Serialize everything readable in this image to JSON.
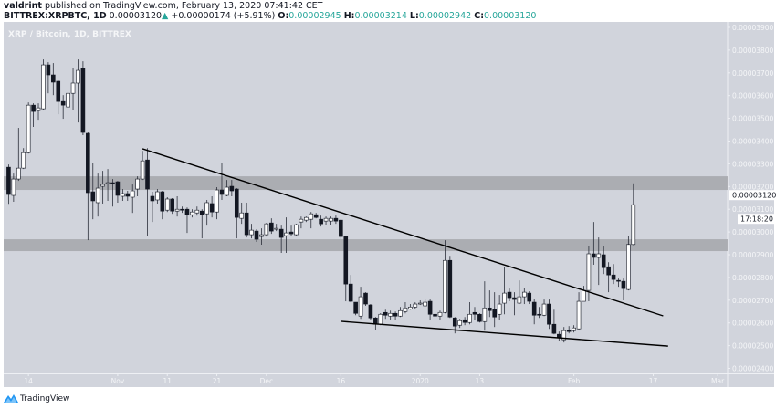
{
  "header": {
    "author": "valdrint",
    "published_text": "published on TradingView.com, February 13, 2020 07:41:42 CET",
    "symbol": "BITTREX:XRPBTC, 1D",
    "last_price": "0.00003120",
    "change": "+0.00000174 (+5.91%)",
    "o_label": "O:",
    "o_value": "0.00002945",
    "h_label": "H:",
    "h_value": "0.00003214",
    "l_label": "L:",
    "l_value": "0.00002942",
    "c_label": "C:",
    "c_value": "0.00003120"
  },
  "chart_title": "XRP / Bitcoin, 1D, BITTREX",
  "price_label": "0.00003120",
  "countdown": "17:18:20",
  "footer": {
    "brand": "TradingView"
  },
  "colors": {
    "background": "#d1d4dc",
    "up_candle": "#ffffff",
    "down_candle": "#131722",
    "zone": "#a5a6aa",
    "trendline": "#000000",
    "change_up": "#26a69a"
  },
  "chart_data": {
    "type": "candlestick",
    "title": "XRP / Bitcoin, 1D, BITTREX",
    "xlim": [
      "2019-10-09",
      "2020-03-03"
    ],
    "ylim": [
      2.378e-05,
      3.924e-05
    ],
    "grid": false,
    "y_ticks": [
      "0.00003900",
      "0.00003800",
      "0.00003700",
      "0.00003600",
      "0.00003500",
      "0.00003400",
      "0.00003300",
      "0.00003200",
      "0.00003100",
      "0.00003000",
      "0.00002900",
      "0.00002800",
      "0.00002700",
      "0.00002600",
      "0.00002500",
      "0.00002400"
    ],
    "x_ticks": [
      {
        "date": "2019-10-14",
        "label": "14"
      },
      {
        "date": "2019-11-01",
        "label": "Nov"
      },
      {
        "date": "2019-11-11",
        "label": "11"
      },
      {
        "date": "2019-11-21",
        "label": "21"
      },
      {
        "date": "2019-12-01",
        "label": "Dec"
      },
      {
        "date": "2019-12-16",
        "label": "16"
      },
      {
        "date": "2020-01-01",
        "label": "2020"
      },
      {
        "date": "2020-01-13",
        "label": "13"
      },
      {
        "date": "2020-02-01",
        "label": "Feb"
      },
      {
        "date": "2020-02-17",
        "label": "17"
      },
      {
        "date": "2020-03-01",
        "label": "Mar"
      }
    ],
    "zones": [
      {
        "from": 3.185e-05,
        "to": 3.245e-05
      },
      {
        "from": 2.916e-05,
        "to": 2.968e-05
      }
    ],
    "trendlines": [
      {
        "from": [
          "2019-11-06",
          3.366e-05
        ],
        "to": [
          "2020-02-19",
          2.631e-05
        ]
      },
      {
        "from": [
          "2019-12-16",
          2.607e-05
        ],
        "to": [
          "2020-02-20",
          2.498e-05
        ]
      }
    ],
    "candles_columns": [
      "date",
      "open",
      "high",
      "low",
      "close"
    ],
    "candles": [
      [
        "2019-10-10",
        3.285e-05,
        3.297e-05,
        3.124e-05,
        3.165e-05
      ],
      [
        "2019-10-11",
        3.161e-05,
        3.257e-05,
        3.133e-05,
        3.233e-05
      ],
      [
        "2019-10-12",
        3.233e-05,
        3.458e-05,
        3.225e-05,
        3.281e-05
      ],
      [
        "2019-10-13",
        3.281e-05,
        3.369e-05,
        3.277e-05,
        3.349e-05
      ],
      [
        "2019-10-14",
        3.349e-05,
        3.57e-05,
        3.345e-05,
        3.558e-05
      ],
      [
        "2019-10-15",
        3.558e-05,
        3.566e-05,
        3.462e-05,
        3.53e-05
      ],
      [
        "2019-10-16",
        3.534e-05,
        3.566e-05,
        3.494e-05,
        3.546e-05
      ],
      [
        "2019-10-17",
        3.542e-05,
        3.759e-05,
        3.538e-05,
        3.735e-05
      ],
      [
        "2019-10-18",
        3.735e-05,
        3.747e-05,
        3.61e-05,
        3.691e-05
      ],
      [
        "2019-10-19",
        3.691e-05,
        3.743e-05,
        3.602e-05,
        3.659e-05
      ],
      [
        "2019-10-20",
        3.663e-05,
        3.667e-05,
        3.518e-05,
        3.574e-05
      ],
      [
        "2019-10-21",
        3.574e-05,
        3.602e-05,
        3.498e-05,
        3.558e-05
      ],
      [
        "2019-10-22",
        3.55e-05,
        3.691e-05,
        3.538e-05,
        3.61e-05
      ],
      [
        "2019-10-23",
        3.61e-05,
        3.719e-05,
        3.538e-05,
        3.655e-05
      ],
      [
        "2019-10-24",
        3.655e-05,
        3.759e-05,
        3.482e-05,
        3.711e-05
      ],
      [
        "2019-10-25",
        3.719e-05,
        3.751e-05,
        3.426e-05,
        3.438e-05
      ],
      [
        "2019-10-26",
        3.434e-05,
        3.438e-05,
        2.964e-05,
        3.173e-05
      ],
      [
        "2019-10-27",
        3.177e-05,
        3.305e-05,
        3.056e-05,
        3.137e-05
      ],
      [
        "2019-10-28",
        3.129e-05,
        3.257e-05,
        3.068e-05,
        3.193e-05
      ],
      [
        "2019-10-29",
        3.201e-05,
        3.269e-05,
        3.125e-05,
        3.209e-05
      ],
      [
        "2019-10-30",
        3.213e-05,
        3.277e-05,
        3.137e-05,
        3.217e-05
      ],
      [
        "2019-10-31",
        3.217e-05,
        3.233e-05,
        3.112e-05,
        3.213e-05
      ],
      [
        "2019-11-01",
        3.221e-05,
        3.225e-05,
        3.129e-05,
        3.161e-05
      ],
      [
        "2019-11-02",
        3.157e-05,
        3.189e-05,
        3.137e-05,
        3.169e-05
      ],
      [
        "2019-11-03",
        3.169e-05,
        3.181e-05,
        3.137e-05,
        3.157e-05
      ],
      [
        "2019-11-04",
        3.153e-05,
        3.209e-05,
        3.084e-05,
        3.181e-05
      ],
      [
        "2019-11-05",
        3.189e-05,
        3.245e-05,
        3.157e-05,
        3.233e-05
      ],
      [
        "2019-11-06",
        3.233e-05,
        3.357e-05,
        3.229e-05,
        3.313e-05
      ],
      [
        "2019-11-07",
        3.317e-05,
        3.369e-05,
        2.984e-05,
        3.189e-05
      ],
      [
        "2019-11-08",
        3.157e-05,
        3.177e-05,
        3.044e-05,
        3.137e-05
      ],
      [
        "2019-11-09",
        3.141e-05,
        3.189e-05,
        3.125e-05,
        3.177e-05
      ],
      [
        "2019-11-10",
        3.177e-05,
        3.181e-05,
        3.056e-05,
        3.092e-05
      ],
      [
        "2019-11-11",
        3.096e-05,
        3.153e-05,
        3.088e-05,
        3.145e-05
      ],
      [
        "2019-11-12",
        3.145e-05,
        3.149e-05,
        3.08e-05,
        3.092e-05
      ],
      [
        "2019-11-13",
        3.092e-05,
        3.157e-05,
        3.068e-05,
        3.1e-05
      ],
      [
        "2019-11-14",
        3.1e-05,
        3.112e-05,
        3.084e-05,
        3.096e-05
      ],
      [
        "2019-11-15",
        3.1e-05,
        3.108e-05,
        2.996e-05,
        3.076e-05
      ],
      [
        "2019-11-16",
        3.076e-05,
        3.1e-05,
        3.064e-05,
        3.088e-05
      ],
      [
        "2019-11-17",
        3.084e-05,
        3.112e-05,
        3.072e-05,
        3.096e-05
      ],
      [
        "2019-11-18",
        3.092e-05,
        3.1e-05,
        2.972e-05,
        3.076e-05
      ],
      [
        "2019-11-19",
        3.08e-05,
        3.141e-05,
        3.028e-05,
        3.129e-05
      ],
      [
        "2019-11-20",
        3.125e-05,
        3.157e-05,
        3.064e-05,
        3.088e-05
      ],
      [
        "2019-11-21",
        3.088e-05,
        3.197e-05,
        3.056e-05,
        3.185e-05
      ],
      [
        "2019-11-22",
        3.185e-05,
        3.305e-05,
        3.141e-05,
        3.165e-05
      ],
      [
        "2019-11-23",
        3.161e-05,
        3.229e-05,
        3.157e-05,
        3.197e-05
      ],
      [
        "2019-11-24",
        3.201e-05,
        3.229e-05,
        3.157e-05,
        3.181e-05
      ],
      [
        "2019-11-25",
        3.189e-05,
        3.193e-05,
        2.972e-05,
        3.064e-05
      ],
      [
        "2019-11-26",
        3.06e-05,
        3.129e-05,
        3.036e-05,
        3.084e-05
      ],
      [
        "2019-11-27",
        3.084e-05,
        3.129e-05,
        2.976e-05,
        2.988e-05
      ],
      [
        "2019-11-28",
        2.988e-05,
        3.036e-05,
        2.972e-05,
        3.008e-05
      ],
      [
        "2019-11-29",
        3.004e-05,
        3.012e-05,
        2.956e-05,
        2.968e-05
      ],
      [
        "2019-11-30",
        2.98e-05,
        3.016e-05,
        2.944e-05,
        2.988e-05
      ],
      [
        "2019-12-01",
        2.988e-05,
        3.04e-05,
        2.98e-05,
        3.036e-05
      ],
      [
        "2019-12-02",
        3.04e-05,
        3.06e-05,
        2.992e-05,
        3.004e-05
      ],
      [
        "2019-12-03",
        3.012e-05,
        3.036e-05,
        3.004e-05,
        3.016e-05
      ],
      [
        "2019-12-04",
        3.012e-05,
        3.028e-05,
        2.908e-05,
        2.976e-05
      ],
      [
        "2019-12-05",
        2.984e-05,
        3.064e-05,
        2.908e-05,
        2.996e-05
      ],
      [
        "2019-12-06",
        3e-05,
        3.028e-05,
        2.984e-05,
        2.992e-05
      ],
      [
        "2019-12-07",
        2.988e-05,
        3.036e-05,
        2.984e-05,
        3.032e-05
      ],
      [
        "2019-12-08",
        3.044e-05,
        3.068e-05,
        3.016e-05,
        3.056e-05
      ],
      [
        "2019-12-09",
        3.052e-05,
        3.068e-05,
        3.044e-05,
        3.064e-05
      ],
      [
        "2019-12-10",
        3.056e-05,
        3.088e-05,
        3.016e-05,
        3.08e-05
      ],
      [
        "2019-12-11",
        3.076e-05,
        3.084e-05,
        3.06e-05,
        3.064e-05
      ],
      [
        "2019-12-12",
        3.056e-05,
        3.072e-05,
        3.024e-05,
        3.036e-05
      ],
      [
        "2019-12-13",
        3.048e-05,
        3.068e-05,
        3.032e-05,
        3.06e-05
      ],
      [
        "2019-12-14",
        3.048e-05,
        3.068e-05,
        3.032e-05,
        3.06e-05
      ],
      [
        "2019-12-15",
        3.06e-05,
        3.072e-05,
        3.036e-05,
        3.048e-05
      ],
      [
        "2019-12-16",
        3.052e-05,
        3.056e-05,
        2.968e-05,
        2.98e-05
      ],
      [
        "2019-12-17",
        2.98e-05,
        2.984e-05,
        2.695e-05,
        2.771e-05
      ],
      [
        "2019-12-18",
        2.771e-05,
        2.811e-05,
        2.691e-05,
        2.695e-05
      ],
      [
        "2019-12-19",
        2.691e-05,
        2.691e-05,
        2.634e-05,
        2.642e-05
      ],
      [
        "2019-12-20",
        2.63e-05,
        2.759e-05,
        2.618e-05,
        2.715e-05
      ],
      [
        "2019-12-21",
        2.731e-05,
        2.735e-05,
        2.675e-05,
        2.683e-05
      ],
      [
        "2019-12-22",
        2.679e-05,
        2.683e-05,
        2.614e-05,
        2.622e-05
      ],
      [
        "2019-12-23",
        2.622e-05,
        2.626e-05,
        2.57e-05,
        2.594e-05
      ],
      [
        "2019-12-24",
        2.594e-05,
        2.643e-05,
        2.59e-05,
        2.638e-05
      ],
      [
        "2019-12-25",
        2.646e-05,
        2.658e-05,
        2.618e-05,
        2.634e-05
      ],
      [
        "2019-12-26",
        2.63e-05,
        2.654e-05,
        2.614e-05,
        2.642e-05
      ],
      [
        "2019-12-27",
        2.642e-05,
        2.65e-05,
        2.614e-05,
        2.63e-05
      ],
      [
        "2019-12-28",
        2.63e-05,
        2.67e-05,
        2.626e-05,
        2.654e-05
      ],
      [
        "2019-12-29",
        2.65e-05,
        2.691e-05,
        2.642e-05,
        2.666e-05
      ],
      [
        "2019-12-30",
        2.662e-05,
        2.683e-05,
        2.658e-05,
        2.67e-05
      ],
      [
        "2019-12-31",
        2.67e-05,
        2.691e-05,
        2.662e-05,
        2.683e-05
      ],
      [
        "2020-01-01",
        2.683e-05,
        2.699e-05,
        2.679e-05,
        2.687e-05
      ],
      [
        "2020-01-02",
        2.675e-05,
        2.707e-05,
        2.671e-05,
        2.691e-05
      ],
      [
        "2020-01-03",
        2.695e-05,
        2.703e-05,
        2.614e-05,
        2.638e-05
      ],
      [
        "2020-01-04",
        2.638e-05,
        2.65e-05,
        2.622e-05,
        2.63e-05
      ],
      [
        "2020-01-05",
        2.63e-05,
        2.654e-05,
        2.614e-05,
        2.646e-05
      ],
      [
        "2020-01-06",
        2.646e-05,
        2.964e-05,
        2.642e-05,
        2.875e-05
      ],
      [
        "2020-01-07",
        2.875e-05,
        2.895e-05,
        2.622e-05,
        2.626e-05
      ],
      [
        "2020-01-08",
        2.622e-05,
        2.626e-05,
        2.554e-05,
        2.586e-05
      ],
      [
        "2020-01-09",
        2.59e-05,
        2.618e-05,
        2.578e-05,
        2.61e-05
      ],
      [
        "2020-01-10",
        2.614e-05,
        2.626e-05,
        2.59e-05,
        2.602e-05
      ],
      [
        "2020-01-11",
        2.602e-05,
        2.691e-05,
        2.594e-05,
        2.638e-05
      ],
      [
        "2020-01-12",
        2.646e-05,
        2.67e-05,
        2.614e-05,
        2.638e-05
      ],
      [
        "2020-01-13",
        2.638e-05,
        2.642e-05,
        2.602e-05,
        2.606e-05
      ],
      [
        "2020-01-14",
        2.606e-05,
        2.783e-05,
        2.566e-05,
        2.666e-05
      ],
      [
        "2020-01-15",
        2.666e-05,
        2.743e-05,
        2.626e-05,
        2.654e-05
      ],
      [
        "2020-01-16",
        2.658e-05,
        2.735e-05,
        2.582e-05,
        2.626e-05
      ],
      [
        "2020-01-17",
        2.638e-05,
        2.723e-05,
        2.614e-05,
        2.683e-05
      ],
      [
        "2020-01-18",
        2.687e-05,
        2.847e-05,
        2.638e-05,
        2.731e-05
      ],
      [
        "2020-01-19",
        2.735e-05,
        2.751e-05,
        2.695e-05,
        2.711e-05
      ],
      [
        "2020-01-20",
        2.711e-05,
        2.735e-05,
        2.634e-05,
        2.703e-05
      ],
      [
        "2020-01-21",
        2.687e-05,
        2.787e-05,
        2.683e-05,
        2.715e-05
      ],
      [
        "2020-01-22",
        2.715e-05,
        2.755e-05,
        2.683e-05,
        2.735e-05
      ],
      [
        "2020-01-23",
        2.731e-05,
        2.739e-05,
        2.683e-05,
        2.695e-05
      ],
      [
        "2020-01-24",
        2.691e-05,
        2.707e-05,
        2.594e-05,
        2.634e-05
      ],
      [
        "2020-01-25",
        2.638e-05,
        2.67e-05,
        2.622e-05,
        2.634e-05
      ],
      [
        "2020-01-26",
        2.634e-05,
        2.703e-05,
        2.63e-05,
        2.683e-05
      ],
      [
        "2020-01-27",
        2.683e-05,
        2.703e-05,
        2.574e-05,
        2.594e-05
      ],
      [
        "2020-01-28",
        2.594e-05,
        2.658e-05,
        2.55e-05,
        2.554e-05
      ],
      [
        "2020-01-29",
        2.55e-05,
        2.562e-05,
        2.522e-05,
        2.534e-05
      ],
      [
        "2020-01-30",
        2.526e-05,
        2.582e-05,
        2.514e-05,
        2.566e-05
      ],
      [
        "2020-01-31",
        2.566e-05,
        2.586e-05,
        2.554e-05,
        2.562e-05
      ],
      [
        "2020-02-01",
        2.566e-05,
        2.59e-05,
        2.558e-05,
        2.578e-05
      ],
      [
        "2020-02-02",
        2.574e-05,
        2.735e-05,
        2.57e-05,
        2.695e-05
      ],
      [
        "2020-02-03",
        2.695e-05,
        2.763e-05,
        2.695e-05,
        2.743e-05
      ],
      [
        "2020-02-04",
        2.743e-05,
        2.936e-05,
        2.695e-05,
        2.904e-05
      ],
      [
        "2020-02-05",
        2.904e-05,
        3.044e-05,
        2.856e-05,
        2.888e-05
      ],
      [
        "2020-02-06",
        2.888e-05,
        2.976e-05,
        2.767e-05,
        2.904e-05
      ],
      [
        "2020-02-07",
        2.9e-05,
        2.936e-05,
        2.815e-05,
        2.843e-05
      ],
      [
        "2020-02-08",
        2.847e-05,
        2.867e-05,
        2.735e-05,
        2.811e-05
      ],
      [
        "2020-02-09",
        2.811e-05,
        2.859e-05,
        2.771e-05,
        2.791e-05
      ],
      [
        "2020-02-10",
        2.787e-05,
        2.795e-05,
        2.759e-05,
        2.783e-05
      ],
      [
        "2020-02-11",
        2.783e-05,
        2.795e-05,
        2.699e-05,
        2.751e-05
      ],
      [
        "2020-02-12",
        2.747e-05,
        2.984e-05,
        2.743e-05,
        2.945e-05
      ],
      [
        "2020-02-13",
        2.945e-05,
        3.214e-05,
        2.942e-05,
        3.12e-05
      ]
    ]
  }
}
